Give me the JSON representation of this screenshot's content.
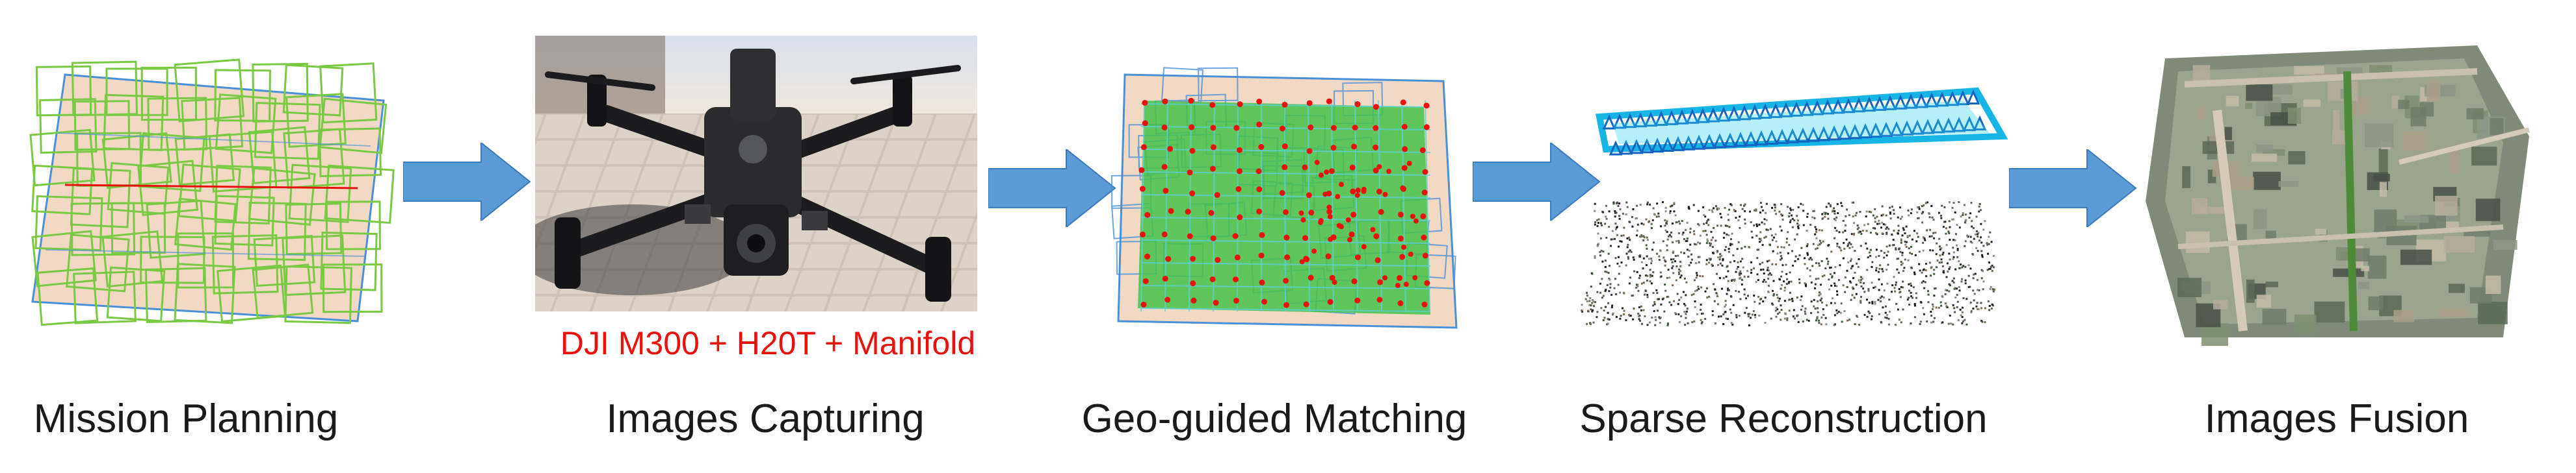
{
  "colors": {
    "accent_red": "#e8120c",
    "arrow_blue": "#5b9bd5",
    "frame_green": "#7ac943",
    "frame_blue": "#4a90d9",
    "sparse_cyan": "#17b5e6"
  },
  "stages": [
    {
      "label": "Mission Planning"
    },
    {
      "label": "Images Capturing",
      "sublabel": "DJI M300 + H20T + Manifold"
    },
    {
      "label": "Geo-guided Matching"
    },
    {
      "label": "Sparse Reconstruction"
    },
    {
      "label": "Images Fusion"
    }
  ]
}
